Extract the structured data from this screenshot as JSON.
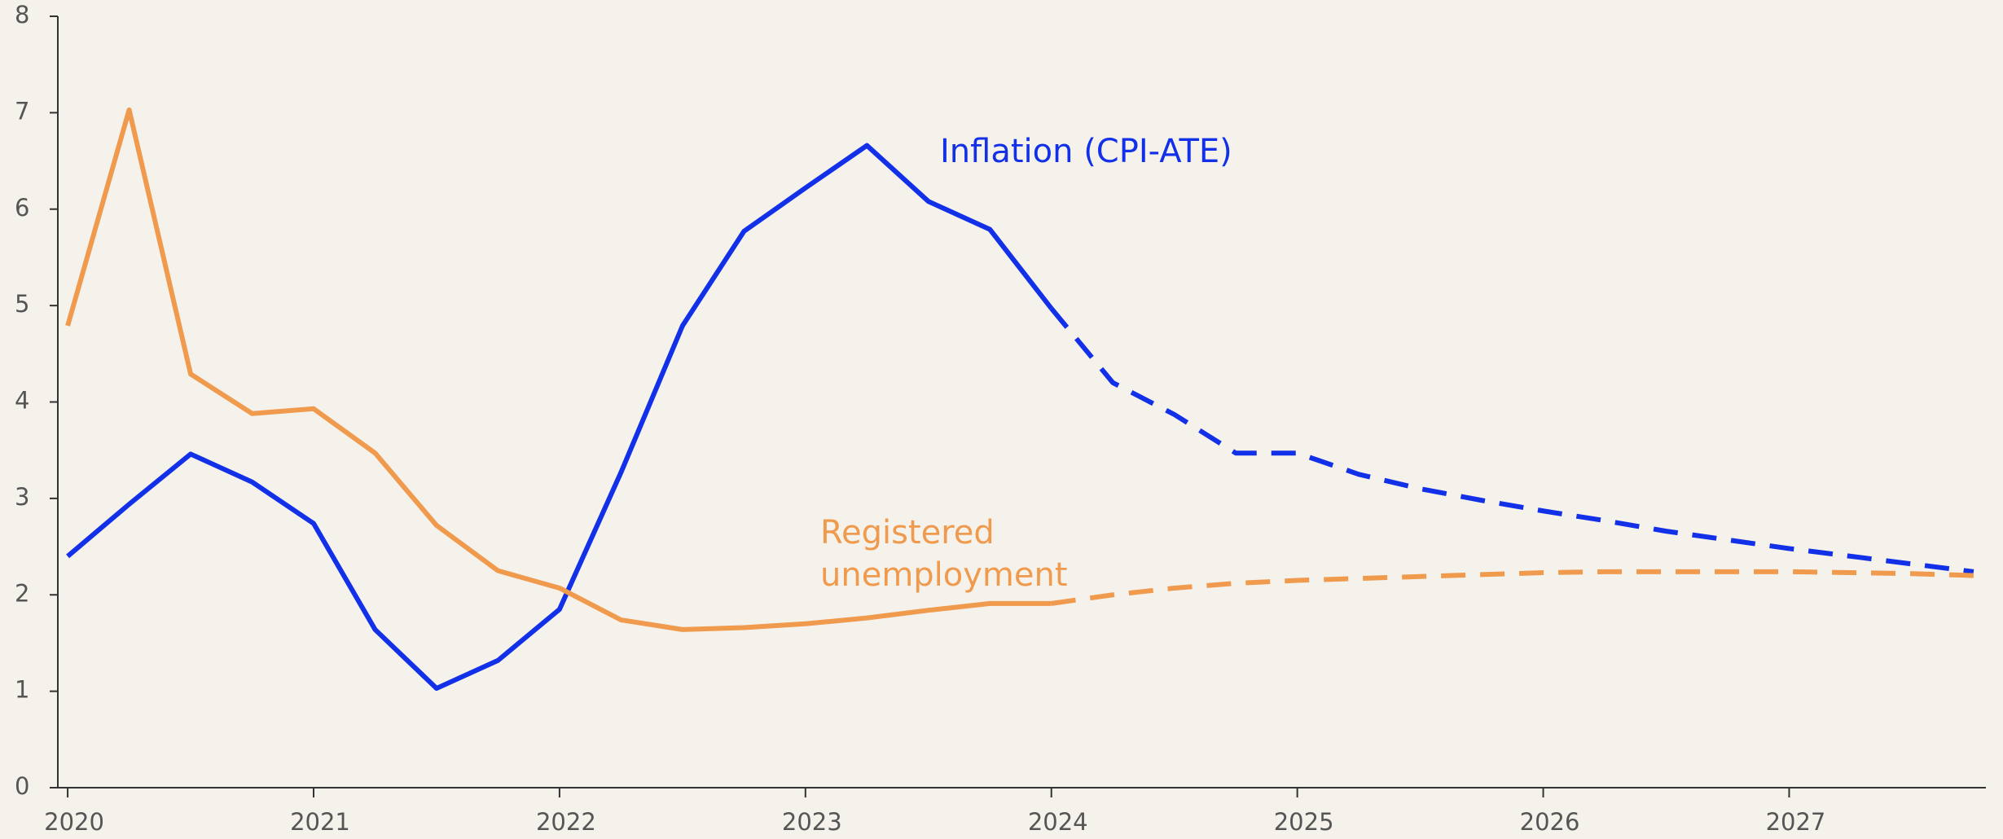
{
  "chart_data": {
    "type": "line",
    "x": [
      2020,
      2020.25,
      2020.5,
      2020.75,
      2021,
      2021.25,
      2021.5,
      2021.75,
      2022,
      2022.25,
      2022.5,
      2022.75,
      2023,
      2023.25,
      2023.5,
      2023.75,
      2024,
      2024.25,
      2024.5,
      2024.75,
      2025,
      2025.25,
      2025.5,
      2025.75,
      2026,
      2026.25,
      2026.5,
      2026.75,
      2027,
      2027.25,
      2027.5,
      2027.75
    ],
    "series": [
      {
        "name": "Inflation (CPI-ATE)",
        "color": "#1230e8",
        "values": [
          2.4,
          2.94,
          3.46,
          3.17,
          2.74,
          1.64,
          1.03,
          1.32,
          1.85,
          3.27,
          4.79,
          5.77,
          6.22,
          6.66,
          6.08,
          5.79,
          4.97,
          4.2,
          3.87,
          3.47,
          3.47,
          3.25,
          3.1,
          2.98,
          2.87,
          2.77,
          2.66,
          2.57,
          2.48,
          2.4,
          2.32,
          2.24
        ]
      },
      {
        "name": "Registered unemployment",
        "color": "#f09a4e",
        "values": [
          4.79,
          7.03,
          4.29,
          3.88,
          3.93,
          3.47,
          2.72,
          2.25,
          2.07,
          1.74,
          1.64,
          1.66,
          1.7,
          1.76,
          1.84,
          1.91,
          1.91,
          2.0,
          2.07,
          2.12,
          2.15,
          2.17,
          2.19,
          2.21,
          2.23,
          2.24,
          2.24,
          2.24,
          2.24,
          2.23,
          2.22,
          2.2
        ]
      }
    ],
    "forecast_from": 2024,
    "xlim": [
      2019.96,
      2027.8
    ],
    "xticks": [
      2020,
      2021,
      2022,
      2023,
      2024,
      2025,
      2026,
      2027
    ],
    "ylim": [
      0,
      8
    ],
    "yticks": [
      0,
      1,
      2,
      3,
      4,
      5,
      6,
      7,
      8
    ]
  }
}
